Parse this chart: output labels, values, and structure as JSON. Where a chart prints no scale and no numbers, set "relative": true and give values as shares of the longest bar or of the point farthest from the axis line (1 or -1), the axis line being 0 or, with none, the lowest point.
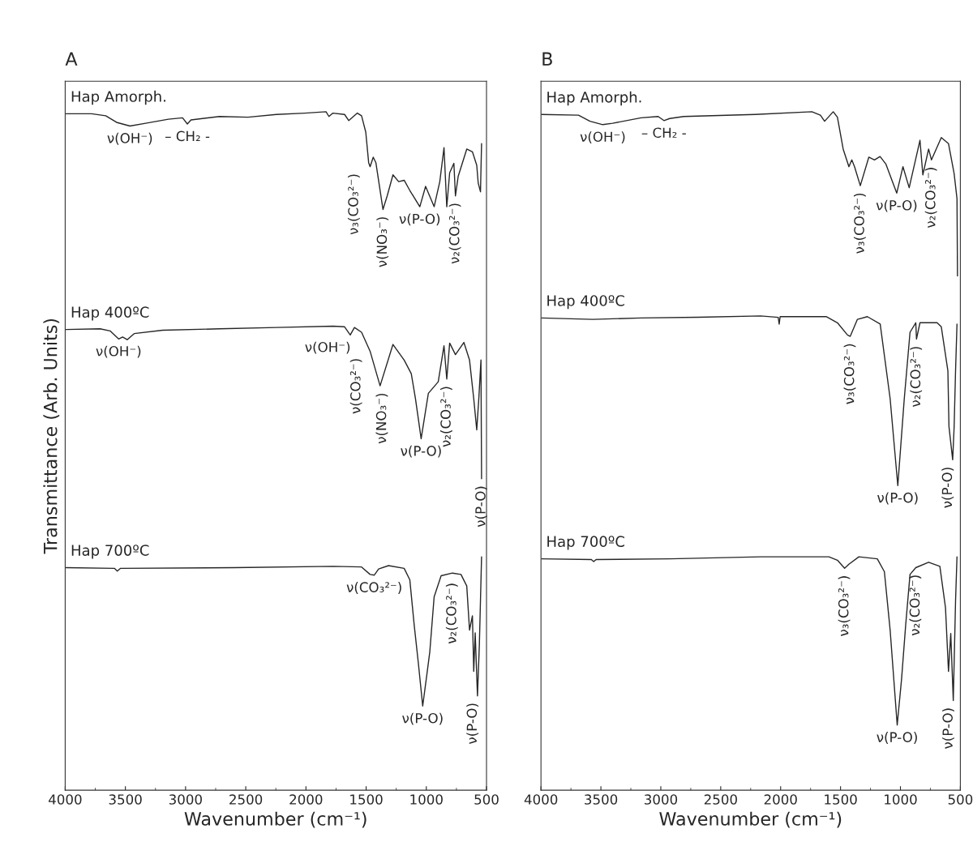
{
  "chart_data": [
    {
      "type": "line",
      "title": "A",
      "xlabel": "Wavenumber (cm⁻¹)",
      "ylabel": "Transmittance (Arb. Units)",
      "relative": true,
      "tick_labels": "x",
      "xlim": [
        4000,
        500
      ],
      "xticks": [
        4000,
        3500,
        3000,
        2500,
        2000,
        1500,
        1000,
        500
      ],
      "series": [
        {
          "name": "Hap Amorph.",
          "color": "#262626",
          "x": [
            3993,
            3781,
            3663,
            3568,
            3462,
            3332,
            3143,
            3025,
            2985,
            2955,
            2718,
            2482,
            2246,
            2010,
            1833,
            1809,
            1776,
            1679,
            1644,
            1573,
            1538,
            1503,
            1479,
            1467,
            1441,
            1419,
            1360,
            1325,
            1277,
            1230,
            1184,
            1137,
            1054,
            1006,
            935,
            888,
            853,
            830,
            806,
            771,
            758,
            735,
            664,
            617,
            581,
            569,
            550,
            541
          ],
          "values": [
            0.997,
            0.997,
            0.994,
            0.984,
            0.979,
            0.983,
            0.989,
            0.991,
            0.982,
            0.988,
            0.993,
            0.992,
            0.996,
            0.998,
            1.0,
            0.993,
            0.998,
            0.996,
            0.987,
            0.998,
            0.994,
            0.97,
            0.925,
            0.919,
            0.933,
            0.925,
            0.856,
            0.876,
            0.907,
            0.897,
            0.899,
            0.884,
            0.86,
            0.89,
            0.86,
            0.897,
            0.947,
            0.86,
            0.91,
            0.924,
            0.876,
            0.905,
            0.945,
            0.941,
            0.921,
            0.895,
            0.882,
            0.953
          ]
        },
        {
          "name": "Hap 400ºC",
          "color": "#262626",
          "x": [
            3993,
            3710,
            3627,
            3556,
            3523,
            3485,
            3427,
            3190,
            2718,
            2246,
            1774,
            1679,
            1632,
            1597,
            1538,
            1467,
            1384,
            1277,
            1184,
            1125,
            1090,
            1043,
            983,
            901,
            853,
            830,
            806,
            758,
            688,
            641,
            606,
            581,
            564,
            546,
            541
          ],
          "values": [
            0.679,
            0.68,
            0.677,
            0.665,
            0.668,
            0.664,
            0.673,
            0.678,
            0.68,
            0.682,
            0.684,
            0.683,
            0.671,
            0.682,
            0.675,
            0.647,
            0.596,
            0.657,
            0.634,
            0.614,
            0.577,
            0.518,
            0.585,
            0.602,
            0.655,
            0.606,
            0.659,
            0.642,
            0.66,
            0.634,
            0.577,
            0.531,
            0.577,
            0.634,
            0.459
          ]
        },
        {
          "name": "Hap 700ºC",
          "color": "#262626",
          "x": [
            3993,
            3591,
            3567,
            3540,
            2600,
            1774,
            1538,
            1467,
            1432,
            1396,
            1314,
            1184,
            1137,
            1101,
            1066,
            1030,
            995,
            971,
            935,
            877,
            783,
            712,
            664,
            641,
            617,
            606,
            594,
            575,
            559,
            541
          ],
          "values": [
            0.328,
            0.327,
            0.323,
            0.327,
            0.328,
            0.33,
            0.329,
            0.318,
            0.317,
            0.326,
            0.331,
            0.327,
            0.31,
            0.244,
            0.187,
            0.124,
            0.171,
            0.204,
            0.285,
            0.316,
            0.32,
            0.318,
            0.301,
            0.236,
            0.257,
            0.175,
            0.232,
            0.139,
            0.216,
            0.344
          ]
        }
      ],
      "annotations": [
        {
          "text": "ν(OH⁻)",
          "x": 3462,
          "y": 0.979
        },
        {
          "text": "– CH₂ -",
          "x": 2985,
          "y": 0.982
        },
        {
          "text": "ν₃(CO₃²⁻)",
          "x": 1467,
          "y": 0.919
        },
        {
          "text": "ν(NO₃⁻)",
          "x": 1360,
          "y": 0.856
        },
        {
          "text": "ν(P-O)",
          "x": 1054,
          "y": 0.86
        },
        {
          "text": "ν₂(CO₃²⁻)",
          "x": 758,
          "y": 0.876
        },
        {
          "text": "ν(OH⁻)",
          "x": 3556,
          "y": 0.665
        },
        {
          "text": "ν(OH⁻)",
          "x": 1632,
          "y": 0.671
        },
        {
          "text": "ν(CO₃²⁻)",
          "x": 1467,
          "y": 0.647
        },
        {
          "text": "ν(NO₃⁻)",
          "x": 1384,
          "y": 0.596
        },
        {
          "text": "ν(P-O)",
          "x": 1043,
          "y": 0.518
        },
        {
          "text": "ν₂(CO₃²⁻)",
          "x": 830,
          "y": 0.606
        },
        {
          "text": "ν(P-O)",
          "x": 541,
          "y": 0.459
        },
        {
          "text": "ν(CO₃²⁻)",
          "x": 1432,
          "y": 0.317
        },
        {
          "text": "ν(P-O)",
          "x": 1030,
          "y": 0.124
        },
        {
          "text": "ν₂(CO₃²⁻)",
          "x": 877,
          "y": 0.316
        },
        {
          "text": "ν(P-O)",
          "x": 575,
          "y": 0.139
        }
      ]
    },
    {
      "type": "line",
      "title": "B",
      "xlabel": "Wavenumber (cm⁻¹)",
      "relative": true,
      "tick_labels": "x",
      "xlim": [
        4000,
        500
      ],
      "xticks": [
        4000,
        3500,
        3000,
        2500,
        2000,
        1500,
        1000,
        500
      ],
      "series": [
        {
          "name": "Hap Amorph.",
          "color": "#262626",
          "x": [
            3995,
            3687,
            3591,
            3484,
            3402,
            3164,
            3022,
            2974,
            2926,
            2808,
            2214,
            1739,
            1668,
            1633,
            1561,
            1526,
            1478,
            1430,
            1406,
            1383,
            1335,
            1264,
            1217,
            1170,
            1122,
            1031,
            979,
            927,
            837,
            813,
            765,
            741,
            659,
            599,
            552,
            528,
            524
          ],
          "values": [
            0.996,
            0.995,
            0.986,
            0.981,
            0.983,
            0.991,
            0.993,
            0.987,
            0.99,
            0.993,
            0.996,
            1.0,
            0.995,
            0.986,
            1.0,
            0.992,
            0.945,
            0.919,
            0.929,
            0.919,
            0.891,
            0.933,
            0.929,
            0.934,
            0.923,
            0.88,
            0.919,
            0.888,
            0.958,
            0.907,
            0.945,
            0.929,
            0.962,
            0.953,
            0.909,
            0.872,
            0.758
          ]
        },
        {
          "name": "Hap 400ºC",
          "color": "#262626",
          "x": [
            3995,
            3567,
            3164,
            2689,
            2167,
            2020,
            2012,
            2004,
            1620,
            1526,
            1442,
            1419,
            1359,
            1276,
            1169,
            1086,
            1022,
            968,
            920,
            872,
            866,
            837,
            694,
            659,
            604,
            595,
            564,
            552,
            540,
            528
          ],
          "values": [
            0.696,
            0.694,
            0.696,
            0.697,
            0.699,
            0.697,
            0.687,
            0.698,
            0.698,
            0.689,
            0.671,
            0.669,
            0.694,
            0.698,
            0.687,
            0.577,
            0.449,
            0.577,
            0.675,
            0.689,
            0.665,
            0.689,
            0.689,
            0.683,
            0.618,
            0.536,
            0.487,
            0.535,
            0.618,
            0.687
          ]
        },
        {
          "name": "Hap 700ºC",
          "color": "#262626",
          "x": [
            3995,
            3580,
            3560,
            3540,
            2926,
            2167,
            1976,
            1597,
            1526,
            1466,
            1430,
            1347,
            1193,
            1134,
            1086,
            1027,
            991,
            956,
            920,
            872,
            765,
            671,
            624,
            599,
            580,
            559,
            540,
            528
          ],
          "values": [
            0.341,
            0.34,
            0.337,
            0.34,
            0.341,
            0.344,
            0.344,
            0.344,
            0.339,
            0.327,
            0.333,
            0.344,
            0.341,
            0.322,
            0.236,
            0.096,
            0.163,
            0.244,
            0.318,
            0.328,
            0.336,
            0.33,
            0.269,
            0.175,
            0.231,
            0.132,
            0.279,
            0.344
          ]
        }
      ],
      "annotations": [
        {
          "text": "ν(OH⁻)",
          "x": 3484,
          "y": 0.981
        },
        {
          "text": "– CH₂ -",
          "x": 2974,
          "y": 0.987
        },
        {
          "text": "ν₃(CO₃²⁻)",
          "x": 1335,
          "y": 0.891
        },
        {
          "text": "ν(P-O)",
          "x": 1031,
          "y": 0.88
        },
        {
          "text": "ν₂(CO₃²⁻)",
          "x": 741,
          "y": 0.929
        },
        {
          "text": "ν₃(CO₃²⁻)",
          "x": 1419,
          "y": 0.669
        },
        {
          "text": "ν(P-O)",
          "x": 1022,
          "y": 0.449
        },
        {
          "text": "ν₂(CO₃²⁻)",
          "x": 866,
          "y": 0.665
        },
        {
          "text": "ν(P-O)",
          "x": 564,
          "y": 0.487
        },
        {
          "text": "ν₃(CO₃²⁻)",
          "x": 1466,
          "y": 0.327
        },
        {
          "text": "ν(P-O)",
          "x": 1027,
          "y": 0.096
        },
        {
          "text": "ν₂(CO₃²⁻)",
          "x": 872,
          "y": 0.328
        },
        {
          "text": "ν(P-O)",
          "x": 559,
          "y": 0.132
        }
      ]
    }
  ]
}
